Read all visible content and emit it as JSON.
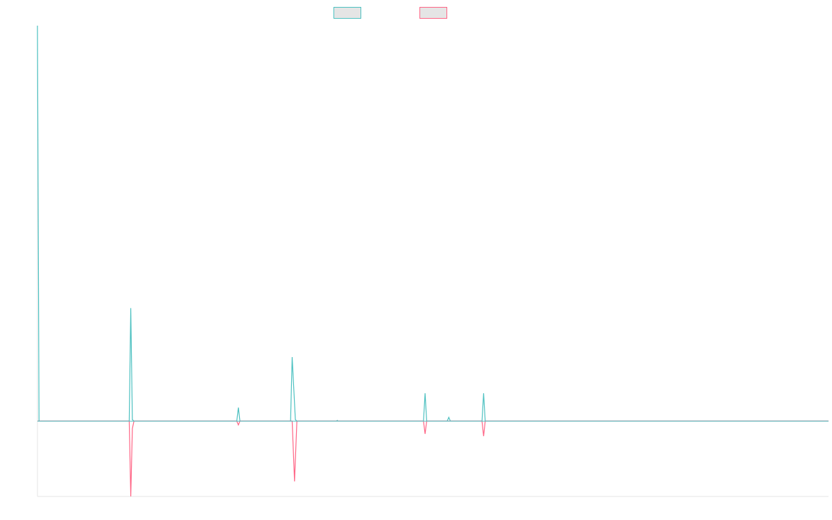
{
  "chart_data": {
    "type": "line",
    "title": "",
    "xlabel": "",
    "ylabel": "",
    "legend_position": "top-center",
    "grid": false,
    "x_range": [
      0,
      1000
    ],
    "y_range": [
      -100,
      525
    ],
    "series": [
      {
        "color": "#4bc0c0",
        "fill": "#e5e5e5",
        "points": [
          [
            0,
            525
          ],
          [
            2,
            0
          ],
          [
            70,
            0
          ],
          [
            116,
            0
          ],
          [
            118,
            150
          ],
          [
            120,
            2
          ],
          [
            122,
            0
          ],
          [
            252,
            0
          ],
          [
            254,
            18
          ],
          [
            256,
            0
          ],
          [
            320,
            0
          ],
          [
            322,
            85
          ],
          [
            326,
            2
          ],
          [
            328,
            0
          ],
          [
            378,
            0
          ],
          [
            379,
            1
          ],
          [
            380,
            0
          ],
          [
            488,
            0
          ],
          [
            490,
            37
          ],
          [
            492,
            0
          ],
          [
            518,
            0
          ],
          [
            520,
            5
          ],
          [
            522,
            0
          ],
          [
            562,
            0
          ],
          [
            564,
            37
          ],
          [
            566,
            0
          ],
          [
            1000,
            0
          ]
        ]
      },
      {
        "color": "#ff6384",
        "fill": "#e5e5e5",
        "points": [
          [
            0,
            0
          ],
          [
            116,
            0
          ],
          [
            118,
            -100
          ],
          [
            120,
            -10
          ],
          [
            122,
            0
          ],
          [
            252,
            0
          ],
          [
            254,
            -5
          ],
          [
            256,
            0
          ],
          [
            322,
            0
          ],
          [
            325,
            -80
          ],
          [
            328,
            0
          ],
          [
            488,
            0
          ],
          [
            490,
            -17
          ],
          [
            492,
            0
          ],
          [
            562,
            0
          ],
          [
            564,
            -20
          ],
          [
            566,
            0
          ],
          [
            1000,
            0
          ]
        ]
      }
    ]
  }
}
